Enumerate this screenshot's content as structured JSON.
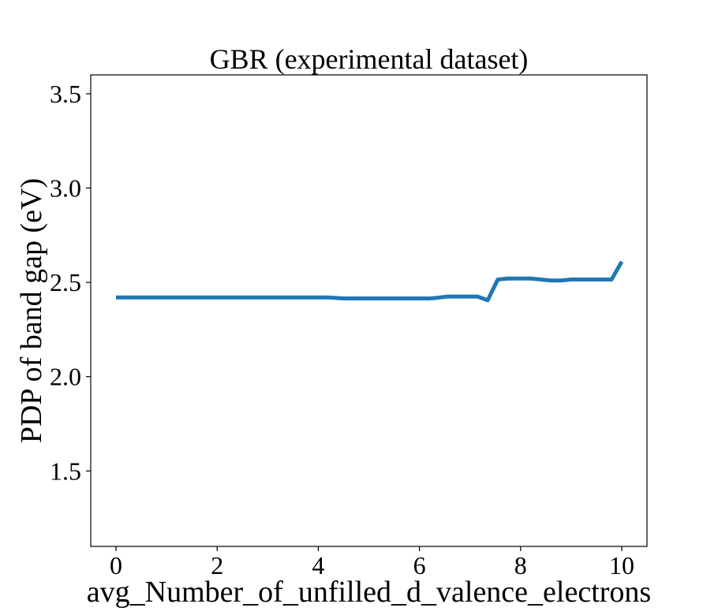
{
  "chart_data": {
    "type": "line",
    "title": "GBR (experimental dataset)",
    "xlabel": "avg_Number_of_unfilled_d_valence_electrons",
    "ylabel": "PDP of band gap (eV)",
    "xlim": [
      -0.5,
      10.5
    ],
    "ylim": [
      1.1,
      3.6
    ],
    "xticks": [
      0,
      2,
      4,
      6,
      8,
      10
    ],
    "xtick_labels": [
      "0",
      "2",
      "4",
      "6",
      "8",
      "10"
    ],
    "yticks": [
      1.5,
      2.0,
      2.5,
      3.0,
      3.5
    ],
    "ytick_labels": [
      "1.5",
      "2.0",
      "2.5",
      "3.0",
      "3.5"
    ],
    "grid": false,
    "series": [
      {
        "color": "#1f77b4",
        "x": [
          0,
          0.5,
          1,
          2,
          3,
          4,
          4.2,
          4.5,
          5,
          5.5,
          6,
          6.2,
          6.35,
          6.55,
          7.15,
          7.35,
          7.55,
          7.75,
          8.2,
          8.6,
          8.8,
          9.0,
          9.5,
          9.8,
          10.0
        ],
        "y": [
          2.42,
          2.42,
          2.42,
          2.42,
          2.42,
          2.42,
          2.42,
          2.415,
          2.415,
          2.415,
          2.415,
          2.415,
          2.418,
          2.425,
          2.425,
          2.405,
          2.515,
          2.52,
          2.52,
          2.51,
          2.51,
          2.515,
          2.515,
          2.515,
          2.61
        ]
      }
    ]
  }
}
